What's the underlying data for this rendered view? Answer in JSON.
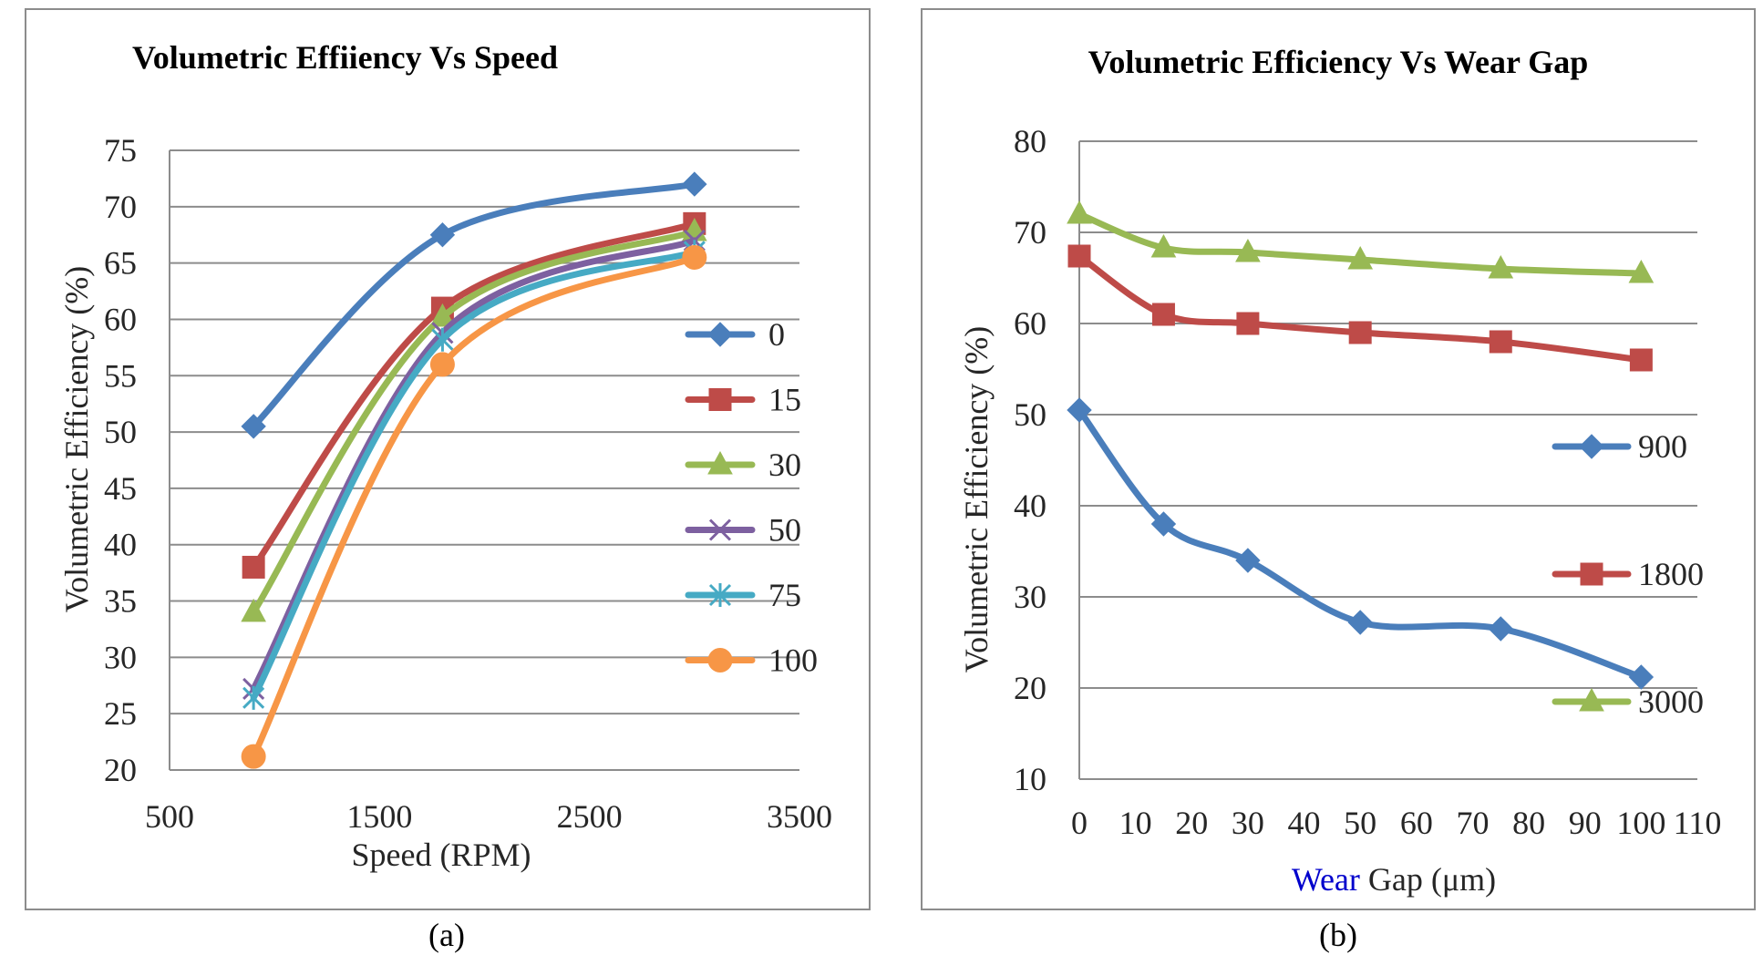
{
  "captions": [
    "(a)",
    "(b)"
  ],
  "chart_data": [
    {
      "type": "line",
      "title": "Volumetric Effiiency Vs Speed",
      "xlabel": "Speed (RPM)",
      "ylabel": "Volumetric Efficiency (%)",
      "xlim": [
        500,
        3500
      ],
      "ylim": [
        20,
        75
      ],
      "x_ticks": [
        "500",
        "1500",
        "2500",
        "3500"
      ],
      "y_ticks": [
        "20",
        "25",
        "30",
        "35",
        "40",
        "45",
        "50",
        "55",
        "60",
        "65",
        "70",
        "75"
      ],
      "grid": "horizontal",
      "smooth": true,
      "legend_position": "right",
      "x": [
        900,
        1800,
        3000
      ],
      "series": [
        {
          "name": "0",
          "values": [
            50.5,
            67.5,
            72
          ],
          "color": "#4a7ebb",
          "marker": "diamond"
        },
        {
          "name": "15",
          "values": [
            38,
            61,
            68.5
          ],
          "color": "#be4b48",
          "marker": "square"
        },
        {
          "name": "30",
          "values": [
            34,
            60.2,
            67.8
          ],
          "color": "#98b954",
          "marker": "triangle"
        },
        {
          "name": "50",
          "values": [
            27.2,
            58.8,
            67
          ],
          "color": "#7d60a0",
          "marker": "x"
        },
        {
          "name": "75",
          "values": [
            26.4,
            58.2,
            66
          ],
          "color": "#46aac4",
          "marker": "star"
        },
        {
          "name": "100",
          "values": [
            21.2,
            56,
            65.5
          ],
          "color": "#f79646",
          "marker": "circle"
        }
      ]
    },
    {
      "type": "line",
      "title": "Volumetric Efficiency Vs Wear Gap",
      "xlabel_parts": [
        "Wear",
        " Gap (μm)"
      ],
      "xlabel_colors": [
        "#0000cc",
        "#262626"
      ],
      "ylabel": "Volumetric Efficiency (%)",
      "xlim": [
        0,
        110
      ],
      "ylim": [
        10,
        80
      ],
      "x_ticks": [
        "0",
        "10",
        "20",
        "30",
        "40",
        "50",
        "60",
        "70",
        "80",
        "90",
        "100",
        "110"
      ],
      "y_ticks": [
        "10",
        "20",
        "30",
        "40",
        "50",
        "60",
        "70",
        "80"
      ],
      "grid": "horizontal",
      "smooth": true,
      "legend_position": "right",
      "x": [
        0,
        15,
        30,
        50,
        75,
        100
      ],
      "series": [
        {
          "name": "900",
          "values": [
            50.5,
            38,
            34,
            27.2,
            26.5,
            21.2
          ],
          "color": "#4a7ebb",
          "marker": "diamond"
        },
        {
          "name": "1800",
          "values": [
            67.4,
            61,
            60,
            59,
            58,
            56
          ],
          "color": "#be4b48",
          "marker": "square"
        },
        {
          "name": "3000",
          "values": [
            72,
            68.3,
            67.8,
            67,
            66,
            65.5
          ],
          "color": "#98b954",
          "marker": "triangle"
        }
      ]
    }
  ]
}
